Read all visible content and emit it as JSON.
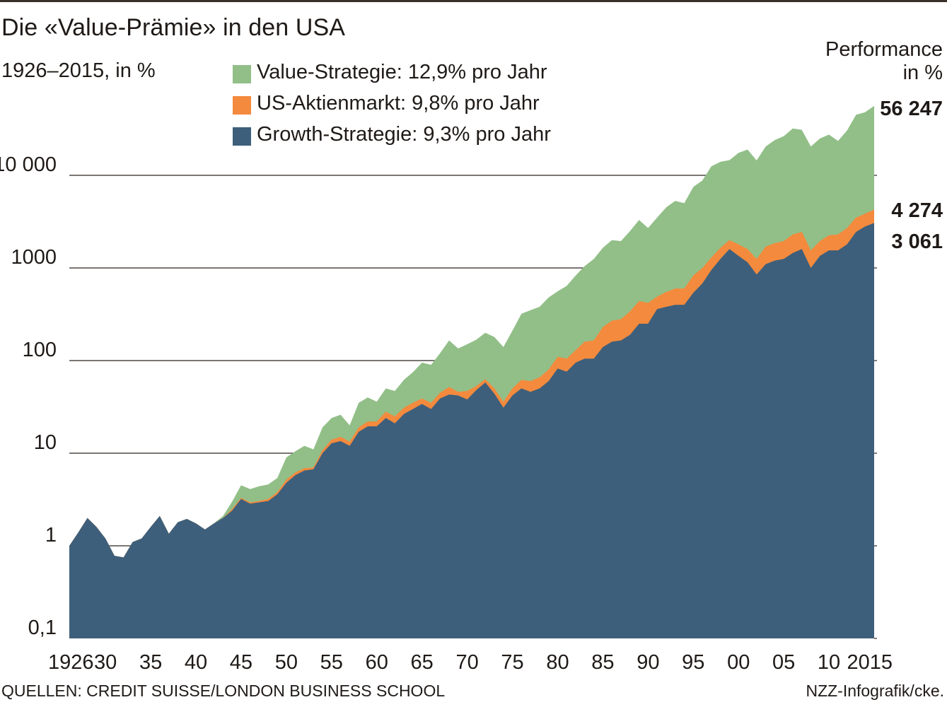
{
  "title": "Die «Value-Prämie» in den USA",
  "subtitle": "1926–2015, in %",
  "performance_header_line1": "Performance",
  "performance_header_line2": "in %",
  "source": "QUELLEN: CREDIT SUISSE/LONDON BUSINESS SCHOOL",
  "credit": "NZZ-Infografik/cke.",
  "colors": {
    "value": "#92bf88",
    "market": "#f48a3d",
    "growth": "#3e5f7b",
    "gridline": "#2b2521",
    "text": "#1f1a17"
  },
  "chart_data": {
    "type": "area",
    "scale": "log",
    "title": "Die «Value-Prämie» in den USA",
    "subtitle": "1926–2015, in %",
    "ylabel": "Performance in %",
    "ylim": [
      0.1,
      100000
    ],
    "y_ticks": [
      {
        "value": 0.1,
        "label": "0,1"
      },
      {
        "value": 1,
        "label": "1"
      },
      {
        "value": 10,
        "label": "10"
      },
      {
        "value": 100,
        "label": "100"
      },
      {
        "value": 1000,
        "label": "1000"
      },
      {
        "value": 10000,
        "label": "10 000"
      }
    ],
    "x_ticks": [
      {
        "year": 1926,
        "label": "1926"
      },
      {
        "year": 1930,
        "label": "30"
      },
      {
        "year": 1935,
        "label": "35"
      },
      {
        "year": 1940,
        "label": "40"
      },
      {
        "year": 1945,
        "label": "45"
      },
      {
        "year": 1950,
        "label": "50"
      },
      {
        "year": 1955,
        "label": "55"
      },
      {
        "year": 1960,
        "label": "60"
      },
      {
        "year": 1965,
        "label": "65"
      },
      {
        "year": 1970,
        "label": "70"
      },
      {
        "year": 1975,
        "label": "75"
      },
      {
        "year": 1980,
        "label": "80"
      },
      {
        "year": 1985,
        "label": "85"
      },
      {
        "year": 1990,
        "label": "90"
      },
      {
        "year": 1995,
        "label": "95"
      },
      {
        "year": 2000,
        "label": "00"
      },
      {
        "year": 2005,
        "label": "05"
      },
      {
        "year": 2010,
        "label": "10"
      },
      {
        "year": 2015,
        "label": "2015"
      }
    ],
    "legend": [
      {
        "key": "value",
        "label": "Value-Strategie: 12,9% pro Jahr"
      },
      {
        "key": "market",
        "label": "US-Aktienmarkt: 9,8% pro Jahr"
      },
      {
        "key": "growth",
        "label": "Growth-Strategie: 9,3% pro Jahr"
      }
    ],
    "end_labels": {
      "value": "56 247",
      "market": "4 274",
      "growth": "3 061"
    },
    "series": {
      "years": [
        1926,
        1927,
        1928,
        1929,
        1930,
        1931,
        1932,
        1933,
        1934,
        1935,
        1936,
        1937,
        1938,
        1939,
        1940,
        1941,
        1942,
        1943,
        1944,
        1945,
        1946,
        1947,
        1948,
        1949,
        1950,
        1951,
        1952,
        1953,
        1954,
        1955,
        1956,
        1957,
        1958,
        1959,
        1960,
        1961,
        1962,
        1963,
        1964,
        1965,
        1966,
        1967,
        1968,
        1969,
        1970,
        1971,
        1972,
        1973,
        1974,
        1975,
        1976,
        1977,
        1978,
        1979,
        1980,
        1981,
        1982,
        1983,
        1984,
        1985,
        1986,
        1987,
        1988,
        1989,
        1990,
        1991,
        1992,
        1993,
        1994,
        1995,
        1996,
        1997,
        1998,
        1999,
        2000,
        2001,
        2002,
        2003,
        2004,
        2005,
        2006,
        2007,
        2008,
        2009,
        2010,
        2011,
        2012,
        2013,
        2014,
        2015
      ],
      "value": [
        1.0,
        1.4,
        2.0,
        1.6,
        1.2,
        0.78,
        0.75,
        1.1,
        1.2,
        1.6,
        2.1,
        1.35,
        1.8,
        1.95,
        1.75,
        1.5,
        1.75,
        2.1,
        3.0,
        4.5,
        4.1,
        4.4,
        4.6,
        5.4,
        9.0,
        10.5,
        12.0,
        11.0,
        19.0,
        24.0,
        26.0,
        20.0,
        35.0,
        40.0,
        36.0,
        50.0,
        47.0,
        62.0,
        75.0,
        95.0,
        90.0,
        120.0,
        165.0,
        135.0,
        150.0,
        168.0,
        200.0,
        180.0,
        140.0,
        210.0,
        320.0,
        350.0,
        380.0,
        480.0,
        560.0,
        640.0,
        830.0,
        1050.0,
        1250.0,
        1650.0,
        2000.0,
        1950.0,
        2500.0,
        3300.0,
        2700.0,
        3500.0,
        4500.0,
        5300.0,
        5000.0,
        7500.0,
        8800.0,
        12500.0,
        14000.0,
        14600.0,
        17500.0,
        19000.0,
        14500.0,
        20500.0,
        24000.0,
        26500.0,
        32000.0,
        31000.0,
        20500.0,
        25000.0,
        27500.0,
        23500.0,
        30500.0,
        45000.0,
        48000.0,
        56247.0
      ],
      "market": [
        1.0,
        1.4,
        2.0,
        1.6,
        1.2,
        0.78,
        0.75,
        1.1,
        1.2,
        1.6,
        2.1,
        1.35,
        1.8,
        1.95,
        1.75,
        1.5,
        1.75,
        2.0,
        2.5,
        3.3,
        2.95,
        3.05,
        3.2,
        3.8,
        5.2,
        6.2,
        6.9,
        7.0,
        10.8,
        14.0,
        15.0,
        13.3,
        19.0,
        22.0,
        22.0,
        28.0,
        25.0,
        31.0,
        35.0,
        39.0,
        35.0,
        45.0,
        52.0,
        46.0,
        47.0,
        53.0,
        63.0,
        50.0,
        36.0,
        50.0,
        62.0,
        60.0,
        66.0,
        80.0,
        110.0,
        105.0,
        130.0,
        160.0,
        165.0,
        230.0,
        270.0,
        280.0,
        340.0,
        440.0,
        420.0,
        490.0,
        550.0,
        600.0,
        600.0,
        830.0,
        1000.0,
        1300.0,
        1650.0,
        2000.0,
        1800.0,
        1600.0,
        1250.0,
        1700.0,
        1850.0,
        1950.0,
        2300.0,
        2450.0,
        1550.0,
        1950.0,
        2250.0,
        2300.0,
        2700.0,
        3500.0,
        3850.0,
        4274.0
      ],
      "growth": [
        1.0,
        1.4,
        2.0,
        1.6,
        1.2,
        0.78,
        0.75,
        1.1,
        1.2,
        1.6,
        2.1,
        1.35,
        1.8,
        1.95,
        1.75,
        1.5,
        1.75,
        2.0,
        2.4,
        3.2,
        2.85,
        2.95,
        3.05,
        3.6,
        4.8,
        5.8,
        6.5,
        6.7,
        10.0,
        12.8,
        13.5,
        12.0,
        17.0,
        19.5,
        19.5,
        24.0,
        21.0,
        26.5,
        30.0,
        34.0,
        30.0,
        39.0,
        43.0,
        42.0,
        38.0,
        48.0,
        58.0,
        44.0,
        31.0,
        42.0,
        50.0,
        46.0,
        50.0,
        60.0,
        82.0,
        76.0,
        95.0,
        105.0,
        105.0,
        140.0,
        160.0,
        165.0,
        190.0,
        250.0,
        250.0,
        360.0,
        380.0,
        400.0,
        400.0,
        540.0,
        680.0,
        950.0,
        1250.0,
        1600.0,
        1350.0,
        1150.0,
        850.0,
        1100.0,
        1200.0,
        1250.0,
        1450.0,
        1600.0,
        1000.0,
        1350.0,
        1550.0,
        1550.0,
        1800.0,
        2450.0,
        2800.0,
        3061.0
      ]
    }
  }
}
